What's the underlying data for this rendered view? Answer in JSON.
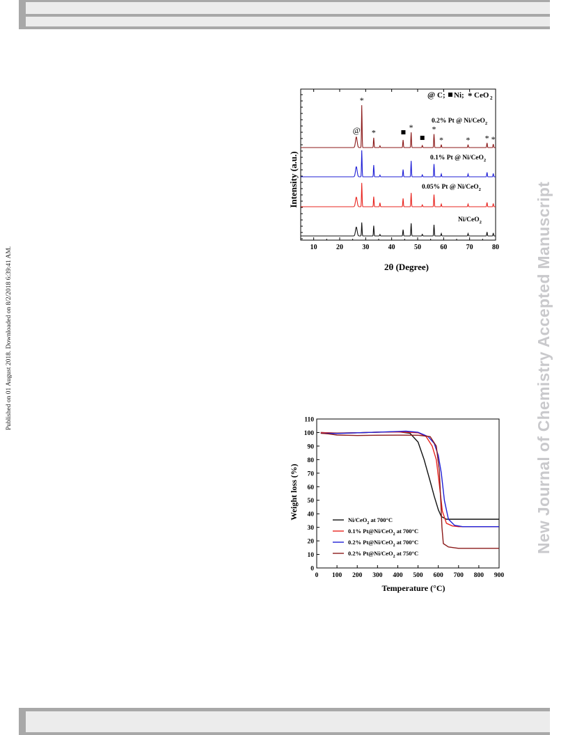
{
  "side_stamp": "Published on 01 August 2018. Downloaded on 8/2/2018 6:39:41 AM.",
  "watermark": "New Journal of Chemistry Accepted Manuscript",
  "colors": {
    "black": "#111111",
    "red": "#e8241f",
    "blue": "#1f1fd6",
    "darkred": "#8b1a1a"
  },
  "xrd": {
    "ylabel": "Intensity (a.u.)",
    "xlabel": "2θ (Degree)",
    "legend": {
      "c_marker": "@",
      "c_label": "C;",
      "ni_label": "Ni;",
      "ceo2_marker": "*",
      "ceo2_label": "CeO",
      "ceo2_sub": "2"
    },
    "traces": [
      {
        "label": "Ni/CeO",
        "sub": "2",
        "color": "#111111"
      },
      {
        "label": "0.05% Pt @ Ni/CeO",
        "sub": "2",
        "color": "#e8241f"
      },
      {
        "label": "0.1% Pt @ Ni/CeO",
        "sub": "2",
        "color": "#1f1fd6"
      },
      {
        "label": "0.2% Pt @ Ni/CeO",
        "sub": "2",
        "color": "#8b1a1a"
      }
    ],
    "annotations": {
      "c_peaks": [
        26.5
      ],
      "ni_peaks": [
        44.5,
        51.8
      ],
      "ceo2_peaks": [
        28.5,
        33.1,
        47.5,
        56.3,
        59.1,
        69.4,
        76.7,
        79.1
      ]
    }
  },
  "chart_data": {
    "type": "line",
    "xlabel": "Temperature (°C)",
    "ylabel": "Weight loss (%)",
    "xlim": [
      0,
      900
    ],
    "ylim": [
      0,
      110
    ],
    "xticks": [
      0,
      100,
      200,
      300,
      400,
      500,
      600,
      700,
      800,
      900
    ],
    "yticks": [
      0,
      10,
      20,
      30,
      40,
      50,
      60,
      70,
      80,
      90,
      100,
      110
    ],
    "legend_placement": "lower-left",
    "series": [
      {
        "name": "Ni/CeO2 at 700°C",
        "label_main": "Ni/CeO",
        "label_sub": "2",
        "label_tail": " at 700°C",
        "color": "#111111",
        "x": [
          20,
          100,
          200,
          300,
          400,
          460,
          500,
          530,
          560,
          580,
          600,
          615,
          640,
          700,
          800,
          900
        ],
        "y": [
          100,
          99.6,
          99.8,
          100.3,
          100.6,
          99.5,
          93,
          80,
          64,
          53,
          43,
          38,
          36,
          36,
          36,
          36
        ]
      },
      {
        "name": "0.1% Pt@Ni/CeO2 at 700°C",
        "label_main": "0.1% Pt@Ni/CeO",
        "label_sub": "2",
        "label_tail": " at 700°C",
        "color": "#e8241f",
        "x": [
          20,
          100,
          200,
          300,
          400,
          500,
          540,
          570,
          590,
          605,
          620,
          640,
          670,
          700,
          800,
          900
        ],
        "y": [
          100,
          99.5,
          99.8,
          100.3,
          100.5,
          99.8,
          97,
          90,
          80,
          62,
          42,
          33,
          31,
          30.5,
          30.5,
          30.5
        ]
      },
      {
        "name": "0.2% Pt@Ni/CeO2 at 700°C",
        "label_main": "0.2% Pt@Ni/CeO",
        "label_sub": "2",
        "label_tail": " at 700°C",
        "color": "#1f1fd6",
        "x": [
          20,
          100,
          200,
          300,
          400,
          440,
          500,
          550,
          580,
          600,
          615,
          630,
          650,
          680,
          720,
          800,
          900
        ],
        "y": [
          99.5,
          99.3,
          99.8,
          100.3,
          100.8,
          101,
          100.2,
          97,
          92,
          83,
          70,
          50,
          36,
          31.5,
          30.5,
          30.5,
          30.5
        ]
      },
      {
        "name": "0.2% Pt@Ni/CeO2 at 750°C",
        "label_main": "0.2% Pt@Ni/CeO",
        "label_sub": "2",
        "label_tail": " at 750°C",
        "color": "#8b1a1a",
        "x": [
          20,
          60,
          100,
          200,
          300,
          400,
          500,
          560,
          590,
          605,
          612,
          618,
          625,
          650,
          700,
          800,
          900
        ],
        "y": [
          99.5,
          99.0,
          98.2,
          97.8,
          98.0,
          98.1,
          98.0,
          97,
          90,
          72,
          50,
          30,
          18,
          15.5,
          14.5,
          14.5,
          14.5
        ]
      }
    ]
  }
}
